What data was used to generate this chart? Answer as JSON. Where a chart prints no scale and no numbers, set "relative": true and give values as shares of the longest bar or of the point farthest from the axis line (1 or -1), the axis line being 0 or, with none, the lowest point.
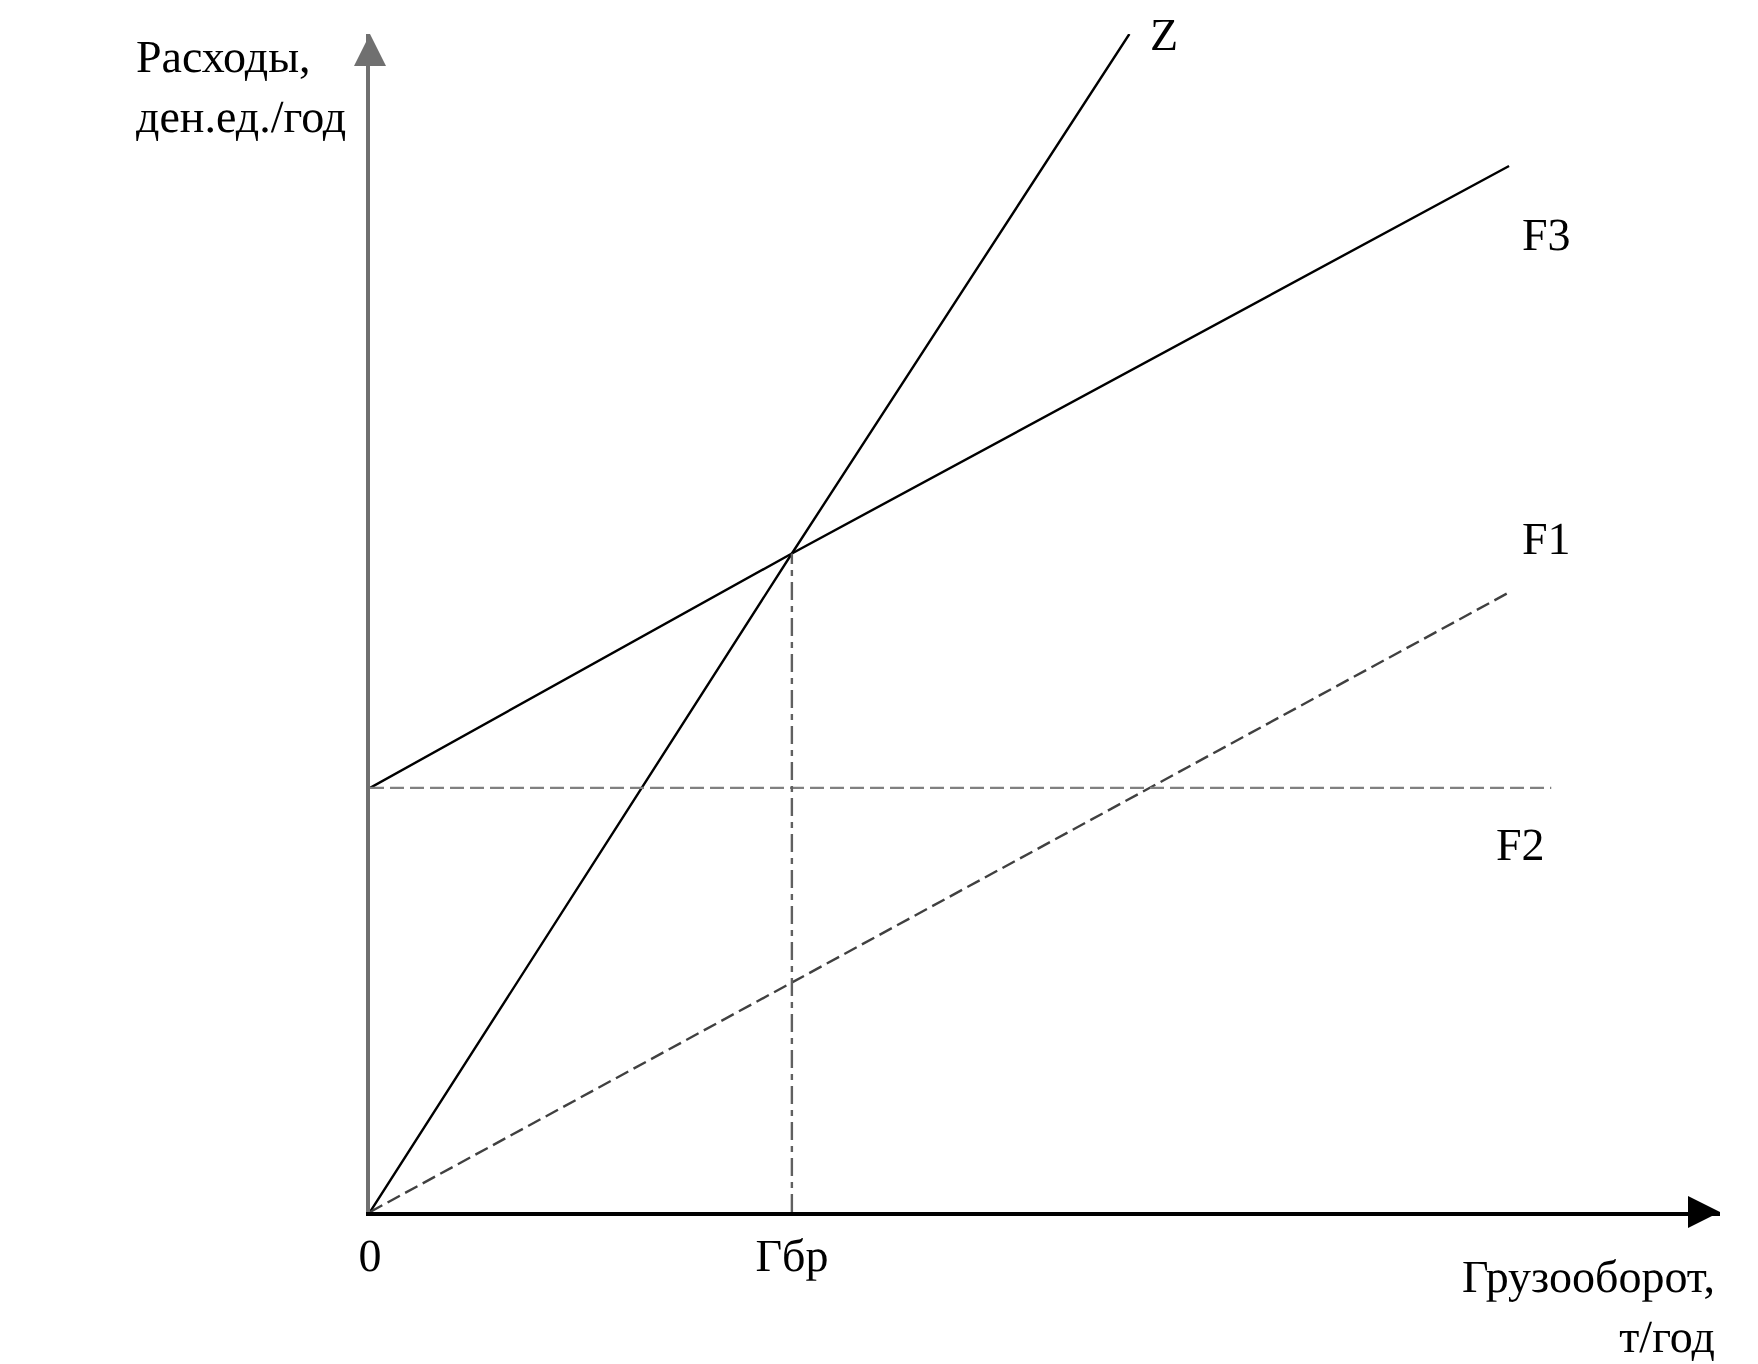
{
  "chart_data": {
    "type": "line",
    "relative": true,
    "xlabel": "Грузооборот,\nт/год",
    "ylabel": "Расходы,\nден.ед./год",
    "categories": [
      "0",
      null,
      null,
      null,
      null,
      null,
      null,
      null,
      null,
      null,
      "Гбр",
      null,
      null,
      null,
      null,
      null,
      null,
      null,
      null,
      null,
      null,
      null,
      null,
      null,
      null,
      null,
      null,
      null,
      null,
      null,
      null,
      null,
      null
    ],
    "grid": false,
    "legend": false,
    "marker": "none",
    "ref_lines": [
      {
        "axis": "x",
        "value": "Гбр",
        "color": "#606060",
        "line_style": "dotted"
      }
    ],
    "series": [
      {
        "name": "Z",
        "color": "#000000",
        "values": [
          0,
          null,
          null,
          null,
          null,
          null,
          null,
          null,
          null,
          null,
          0.559,
          null,
          null,
          null,
          null,
          null,
          null,
          null,
          1,
          null,
          null,
          null,
          null,
          null,
          null,
          null,
          null,
          null,
          null,
          null,
          null,
          null,
          null
        ]
      },
      {
        "name": "F3",
        "color": "#000000",
        "values": [
          0.36,
          null,
          null,
          null,
          null,
          null,
          null,
          null,
          null,
          null,
          0.559,
          null,
          null,
          null,
          null,
          null,
          null,
          null,
          null,
          null,
          null,
          null,
          null,
          null,
          null,
          null,
          null,
          0.888,
          null,
          null,
          null,
          null,
          null
        ]
      },
      {
        "name": "F1",
        "color": "#404040",
        "line_style": "dashed",
        "values": [
          0,
          null,
          null,
          null,
          null,
          null,
          null,
          null,
          null,
          null,
          null,
          null,
          null,
          null,
          null,
          null,
          null,
          null,
          null,
          null,
          null,
          null,
          null,
          null,
          null,
          null,
          null,
          0.526,
          null,
          null,
          null,
          null,
          null
        ]
      },
      {
        "name": "F2",
        "color": "#808080",
        "line_style": "dashed",
        "values": [
          0.36,
          null,
          null,
          null,
          null,
          null,
          null,
          null,
          null,
          null,
          null,
          null,
          null,
          null,
          null,
          null,
          null,
          null,
          null,
          null,
          null,
          null,
          null,
          null,
          null,
          null,
          null,
          null,
          0.36,
          null,
          null,
          null,
          null
        ]
      }
    ]
  }
}
